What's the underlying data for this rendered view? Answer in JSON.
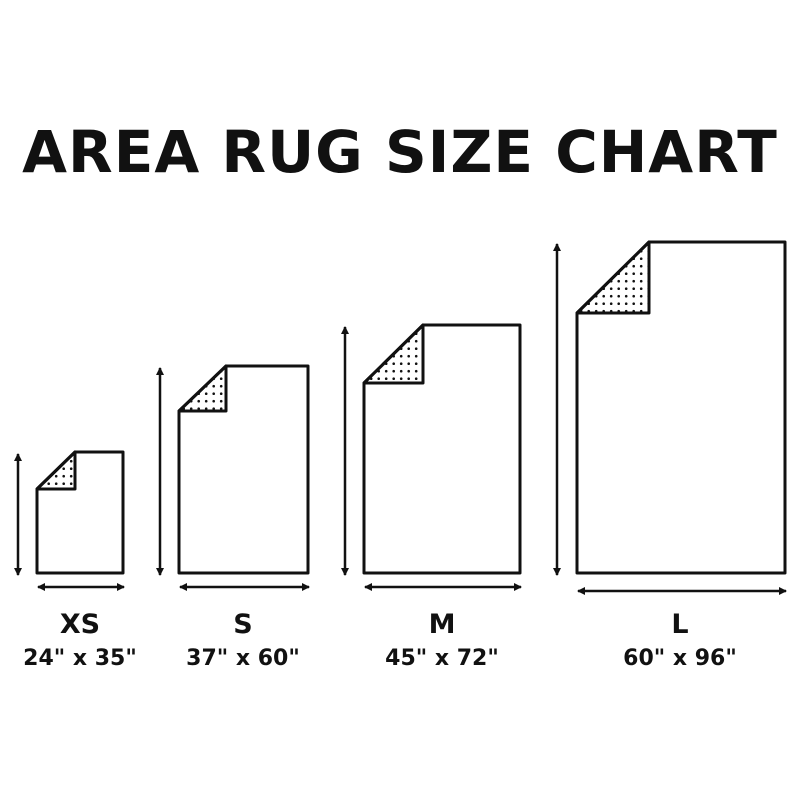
{
  "title": "AREA RUG SIZE CHART",
  "colors": {
    "stroke": "#111111",
    "fill": "#ffffff"
  },
  "rugs": [
    {
      "size": "XS",
      "dimensions": "24\" x 35\""
    },
    {
      "size": "S",
      "dimensions": "37\" x 60\""
    },
    {
      "size": "M",
      "dimensions": "45\" x 72\""
    },
    {
      "size": "L",
      "dimensions": "60\" x 96\""
    }
  ]
}
